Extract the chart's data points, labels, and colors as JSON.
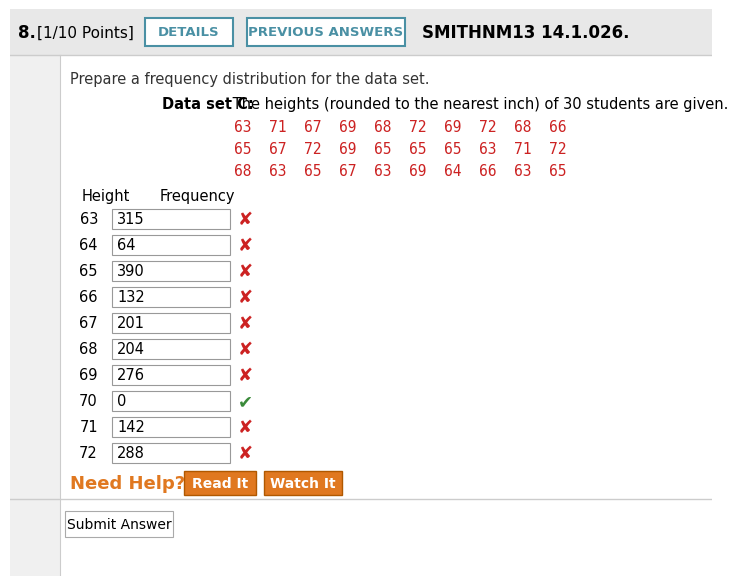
{
  "title_number": "8.",
  "title_points": "[1/10 Points]",
  "btn1": "DETAILS",
  "btn2": "PREVIOUS ANSWERS",
  "title_right": "SMITHNM13 14.1.026.",
  "instruction": "Prepare a frequency distribution for the data set.",
  "dataset_label": "Data set C:",
  "dataset_desc": " The heights (rounded to the nearest inch) of 30 students are given.",
  "data_row1": "63  71  67  69  68  72  69  72  68  66",
  "data_row2": "65  67  72  69  65  65  65  63  71  72",
  "data_row3": "68  63  65  67  63  69  64  66  63  65",
  "col_header_height": "Height",
  "col_header_freq": "Frequency",
  "heights": [
    63,
    64,
    65,
    66,
    67,
    68,
    69,
    70,
    71,
    72
  ],
  "frequencies": [
    "315",
    "64",
    "390",
    "132",
    "201",
    "204",
    "276",
    "0",
    "142",
    "288"
  ],
  "correct": [
    false,
    false,
    false,
    false,
    false,
    false,
    false,
    true,
    false,
    false
  ],
  "header_bg": "#e8e8e8",
  "content_bg": "#f9f9f9",
  "white": "#ffffff",
  "border_color": "#4a90a4",
  "data_color": "#cc2222",
  "need_help_color": "#e07820",
  "btn_bg": "#e07820",
  "btn_text": "#ffffff",
  "check_color": "#3a8a3a",
  "cross_color": "#cc2222",
  "input_border": "#999999",
  "text_color": "#333333"
}
